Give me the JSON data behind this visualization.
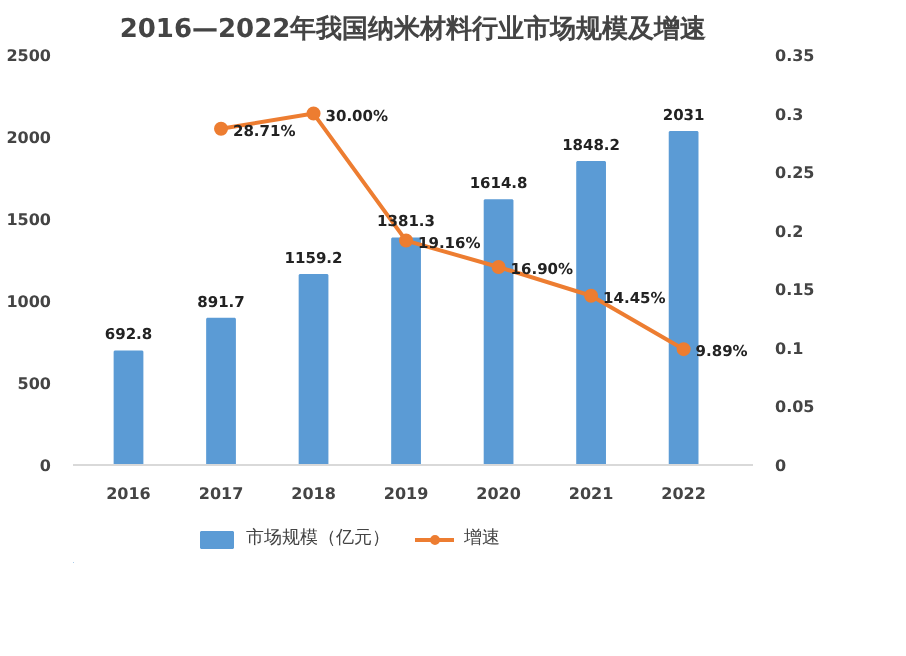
{
  "chart_data": {
    "type": "bar",
    "title": "2016—2022年我国纳米材料行业市场规模及增速",
    "categories": [
      "2016",
      "2017",
      "2018",
      "2019",
      "2020",
      "2021",
      "2022"
    ],
    "series": [
      {
        "name": "市场规模（亿元）",
        "type": "bar",
        "color": "#5b9bd5",
        "values": [
          692.8,
          891.7,
          1159.2,
          1381.3,
          1614.8,
          1848.2,
          2031
        ],
        "value_labels": [
          "692.8",
          "891.7",
          "1159.2",
          "1381.3",
          "1614.8",
          "1848.2",
          "2031"
        ]
      },
      {
        "name": "增速",
        "type": "line",
        "axis": "y2",
        "color": "#ed7d31",
        "marker": "circle",
        "values": [
          null,
          0.2871,
          0.3,
          0.1916,
          0.169,
          0.1445,
          0.0989
        ],
        "value_labels": [
          null,
          "28.71%",
          "30.00%",
          "19.16%",
          "16.90%",
          "14.45%",
          "9.89%"
        ]
      }
    ],
    "ylim": [
      0,
      2500
    ],
    "yticks": [
      0,
      500,
      1000,
      1500,
      2000,
      2500
    ],
    "y2lim": [
      0,
      0.35
    ],
    "y2ticks": [
      0,
      0.05,
      0.1,
      0.15,
      0.2,
      0.25,
      0.3,
      0.35
    ],
    "grid": false,
    "legend": "bottom"
  }
}
